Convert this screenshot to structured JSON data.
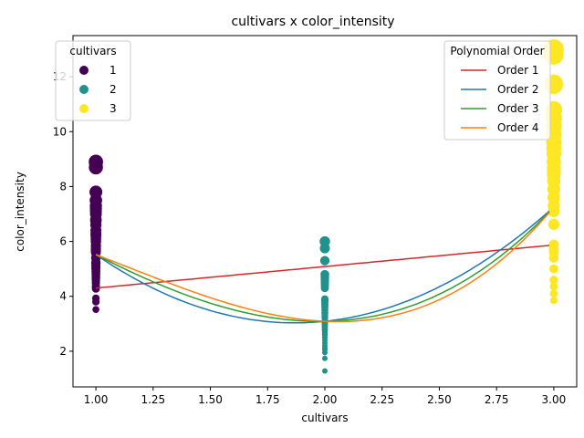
{
  "chart_data": {
    "type": "scatter",
    "title": "cultivars x color_intensity",
    "xlabel": "cultivars",
    "ylabel": "color_intensity",
    "xlim": [
      0.9,
      3.1
    ],
    "ylim": [
      0.7,
      13.5
    ],
    "xticks": [
      "1.00",
      "1.25",
      "1.50",
      "1.75",
      "2.00",
      "2.25",
      "2.50",
      "2.75",
      "3.00"
    ],
    "yticks": [
      "2",
      "4",
      "6",
      "8",
      "10",
      "12"
    ],
    "grid": false,
    "points": [
      {
        "cultivar": 1,
        "color_intensity": [
          3.52,
          3.8,
          3.93,
          4.28,
          4.32,
          4.38,
          4.5,
          4.6,
          4.68,
          4.7,
          4.8,
          4.9,
          5.0,
          5.04,
          5.1,
          5.2,
          5.24,
          5.4,
          5.6,
          5.64,
          5.7,
          5.75,
          5.85,
          6.0,
          6.1,
          6.2,
          6.25,
          6.3,
          6.4,
          6.6,
          6.75,
          6.8,
          7.0,
          7.1,
          7.2,
          7.3,
          7.5,
          7.8,
          8.7,
          8.9
        ]
      },
      {
        "cultivar": 2,
        "color_intensity": [
          1.28,
          1.74,
          1.95,
          2.06,
          2.12,
          2.2,
          2.3,
          2.4,
          2.5,
          2.6,
          2.62,
          2.7,
          2.76,
          2.8,
          2.85,
          2.9,
          2.95,
          3.0,
          3.05,
          3.1,
          3.2,
          3.25,
          3.3,
          3.38,
          3.4,
          3.5,
          3.6,
          3.7,
          3.8,
          3.85,
          3.9,
          4.3,
          4.4,
          4.5,
          4.6,
          4.7,
          4.8,
          5.3,
          5.75,
          6.0
        ]
      },
      {
        "cultivar": 3,
        "color_intensity": [
          3.85,
          4.1,
          4.36,
          4.6,
          5.0,
          5.4,
          5.6,
          5.7,
          5.88,
          6.62,
          7.1,
          7.3,
          7.6,
          7.9,
          8.2,
          8.42,
          8.5,
          8.66,
          8.9,
          9.2,
          9.4,
          9.6,
          9.9,
          10.2,
          10.5,
          10.8,
          11.7,
          11.75,
          12.8,
          13.0
        ]
      }
    ],
    "legend_points": {
      "title": "cultivars",
      "placement": "top-left",
      "entries": [
        {
          "label": "1",
          "color": "#440154"
        },
        {
          "label": "2",
          "color": "#21918c"
        },
        {
          "label": "3",
          "color": "#fde725"
        }
      ]
    },
    "series": [
      {
        "name": "Order 1",
        "color": "#d62728",
        "y_at_1": 4.3,
        "y_at_2": 5.08,
        "y_at_3": 5.87
      },
      {
        "name": "Order 2",
        "color": "#1f77b4",
        "y_at_1": 5.52,
        "y_at_2": 3.09,
        "y_at_3": 7.25
      },
      {
        "name": "Order 3",
        "color": "#2ca02c",
        "y_at_1": 5.52,
        "y_at_2": 3.09,
        "y_at_3": 7.25,
        "y_at_1_5": 3.75
      },
      {
        "name": "Order 4",
        "color": "#ff7f0e",
        "y_at_1": 5.52,
        "y_at_2": 3.09,
        "y_at_3": 7.25,
        "y_at_1_5": 3.95
      }
    ],
    "legend_lines": {
      "title": "Polynomial Order",
      "placement": "top-right"
    }
  }
}
